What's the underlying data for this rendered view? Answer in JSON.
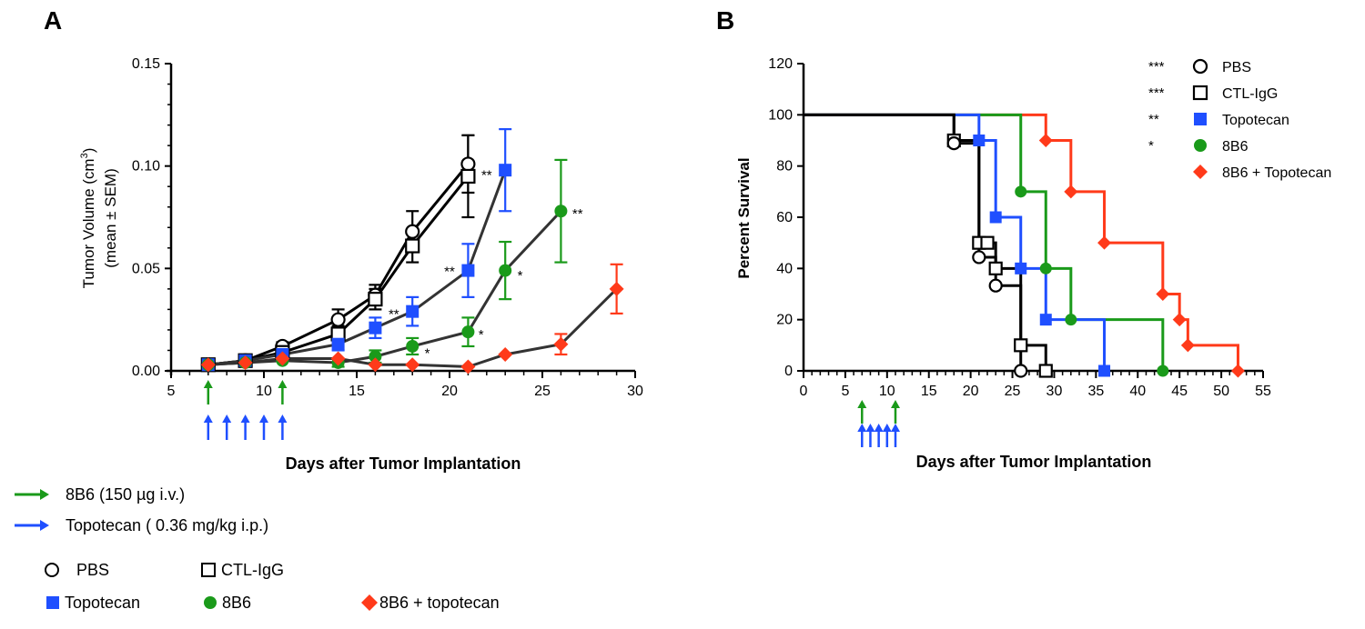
{
  "colors": {
    "black": "#000000",
    "blue": "#1f4fff",
    "green": "#1a9a1a",
    "red": "#ff3a1a",
    "dark": "#333333"
  },
  "chart_data": [
    {
      "panel_label": "A",
      "type": "line",
      "ylabel_1": "Tumor Volume (cm",
      "ylabel_sup": "3",
      "ylabel_2": ")",
      "ylabel_3": "(mean ± SEM)",
      "xlabel": "Days after Tumor Implantation",
      "xlim": [
        5,
        30
      ],
      "ylim": [
        0,
        0.15
      ],
      "x_ticks": [
        "5",
        "10",
        "15",
        "20",
        "25",
        "30"
      ],
      "y_ticks": [
        "0.00",
        "0.05",
        "0.10",
        "0.15"
      ],
      "series": [
        {
          "name": "PBS",
          "color": "black",
          "marker": "circle",
          "filled": false,
          "x": [
            7,
            9,
            11,
            14,
            16,
            18,
            21
          ],
          "y": [
            0.003,
            0.005,
            0.012,
            0.025,
            0.037,
            0.068,
            0.101
          ],
          "err": [
            0.001,
            0.001,
            0.002,
            0.005,
            0.005,
            0.01,
            0.014
          ],
          "stars": []
        },
        {
          "name": "CTL-IgG",
          "color": "black",
          "marker": "square",
          "filled": false,
          "x": [
            7,
            9,
            11,
            14,
            16,
            18,
            21
          ],
          "y": [
            0.003,
            0.005,
            0.009,
            0.018,
            0.035,
            0.061,
            0.095
          ],
          "err": [
            0.001,
            0.001,
            0.002,
            0.004,
            0.005,
            0.008,
            0.02
          ],
          "stars": []
        },
        {
          "name": "Topotecan",
          "color": "blue",
          "marker": "square",
          "filled": true,
          "x": [
            7,
            9,
            11,
            14,
            16,
            18,
            21,
            23
          ],
          "y": [
            0.003,
            0.005,
            0.008,
            0.013,
            0.021,
            0.029,
            0.049,
            0.098
          ],
          "err": [
            0.001,
            0.001,
            0.002,
            0.003,
            0.005,
            0.007,
            0.013,
            0.02
          ],
          "stars": [
            {
              "x": 17,
              "y": 0.029,
              "text": "**"
            },
            {
              "x": 20,
              "y": 0.05,
              "text": "**"
            },
            {
              "x": 22,
              "y": 0.097,
              "text": "**"
            }
          ]
        },
        {
          "name": "8B6",
          "color": "green",
          "marker": "circle",
          "filled": true,
          "x": [
            7,
            9,
            11,
            14,
            16,
            18,
            21,
            23,
            26
          ],
          "y": [
            0.003,
            0.004,
            0.005,
            0.004,
            0.007,
            0.012,
            0.019,
            0.049,
            0.078
          ],
          "err": [
            0.001,
            0.001,
            0.001,
            0.002,
            0.003,
            0.004,
            0.007,
            0.014,
            0.025
          ],
          "stars": [
            {
              "x": 18.8,
              "y": 0.01,
              "text": "*"
            },
            {
              "x": 21.7,
              "y": 0.019,
              "text": "*"
            },
            {
              "x": 23.8,
              "y": 0.048,
              "text": "*"
            },
            {
              "x": 26.9,
              "y": 0.078,
              "text": "**"
            }
          ]
        },
        {
          "name": "8B6 + Topotecan",
          "color": "red",
          "marker": "diamond",
          "filled": true,
          "x": [
            7,
            9,
            11,
            14,
            16,
            18,
            21,
            23,
            26,
            29
          ],
          "y": [
            0.003,
            0.004,
            0.006,
            0.006,
            0.003,
            0.003,
            0.002,
            0.008,
            0.013,
            0.04
          ],
          "err": [
            0.001,
            0.001,
            0.001,
            0.001,
            0.001,
            0.001,
            0.001,
            0.001,
            0.005,
            0.012
          ],
          "stars": []
        }
      ],
      "dosing": {
        "green_days": [
          7,
          11
        ],
        "blue_days": [
          7,
          8,
          9,
          10,
          11
        ]
      }
    },
    {
      "panel_label": "B",
      "type": "step",
      "ylabel": "Percent Survival",
      "xlabel": "Days  after Tumor Implantation",
      "xlim": [
        0,
        55
      ],
      "ylim": [
        0,
        120
      ],
      "x_ticks": [
        "0",
        "5",
        "10",
        "15",
        "20",
        "25",
        "30",
        "35",
        "40",
        "45",
        "50",
        "55"
      ],
      "y_ticks": [
        "0",
        "20",
        "40",
        "60",
        "80",
        "100",
        "120"
      ],
      "series": [
        {
          "name": "PBS",
          "color": "black",
          "marker": "circle",
          "filled": false,
          "sig": "***",
          "steps": [
            [
              0,
              100
            ],
            [
              18,
              88.9
            ],
            [
              21,
              44.4
            ],
            [
              23,
              33.3
            ],
            [
              26,
              0
            ]
          ],
          "markers": [
            [
              18,
              88.9
            ],
            [
              21,
              44.4
            ],
            [
              23,
              33.3
            ],
            [
              26,
              0
            ]
          ]
        },
        {
          "name": "CTL-IgG",
          "color": "black",
          "marker": "square",
          "filled": false,
          "sig": "***",
          "steps": [
            [
              0,
              100
            ],
            [
              18,
              90
            ],
            [
              21,
              50
            ],
            [
              22,
              50
            ],
            [
              23,
              40
            ],
            [
              26,
              10
            ],
            [
              29,
              0
            ]
          ],
          "markers": [
            [
              18,
              90
            ],
            [
              21,
              50
            ],
            [
              22,
              50
            ],
            [
              23,
              40
            ],
            [
              26,
              10
            ],
            [
              29,
              0
            ]
          ]
        },
        {
          "name": "Topotecan",
          "color": "blue",
          "marker": "square",
          "filled": true,
          "sig": "**",
          "steps": [
            [
              0,
              100
            ],
            [
              21,
              90
            ],
            [
              23,
              60
            ],
            [
              26,
              40
            ],
            [
              29,
              20
            ],
            [
              36,
              0
            ]
          ],
          "markers": [
            [
              21,
              90
            ],
            [
              23,
              60
            ],
            [
              26,
              40
            ],
            [
              29,
              20
            ],
            [
              36,
              0
            ]
          ]
        },
        {
          "name": "8B6",
          "color": "green",
          "marker": "circle",
          "filled": true,
          "sig": "*",
          "steps": [
            [
              0,
              100
            ],
            [
              26,
              70
            ],
            [
              29,
              40
            ],
            [
              32,
              20
            ],
            [
              43,
              0
            ]
          ],
          "markers": [
            [
              26,
              70
            ],
            [
              29,
              40
            ],
            [
              32,
              20
            ],
            [
              43,
              0
            ]
          ]
        },
        {
          "name": "8B6 + Topotecan",
          "color": "red",
          "marker": "diamond",
          "filled": true,
          "sig": "",
          "steps": [
            [
              0,
              100
            ],
            [
              29,
              90
            ],
            [
              32,
              70
            ],
            [
              36,
              50
            ],
            [
              43,
              30
            ],
            [
              45,
              20
            ],
            [
              46,
              10
            ],
            [
              52,
              0
            ]
          ],
          "markers": [
            [
              29,
              90
            ],
            [
              32,
              70
            ],
            [
              36,
              50
            ],
            [
              43,
              30
            ],
            [
              45,
              20
            ],
            [
              46,
              10
            ],
            [
              52,
              0
            ]
          ]
        }
      ],
      "dosing": {
        "green_days": [
          7,
          11
        ],
        "blue_days": [
          7,
          8,
          9,
          10,
          11
        ]
      }
    }
  ],
  "legend_bottom": {
    "green_arrow": "8B6 (150 µg i.v.)",
    "blue_arrow": "Topotecan ( 0.36 mg/kg i.p.)",
    "pbs": "PBS",
    "ctl": "CTL-IgG",
    "topotecan": "Topotecan",
    "b86": "8B6",
    "combo": "8B6 + topotecan"
  }
}
